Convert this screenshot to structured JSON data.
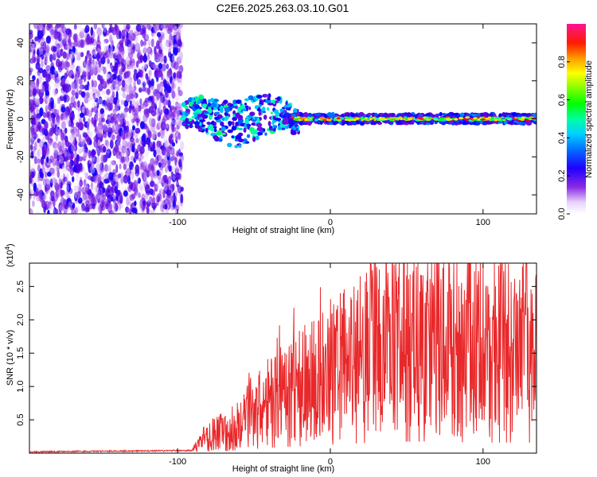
{
  "figure": {
    "title": "C2E6.2025.263.03.10.G01"
  },
  "chart_data": [
    {
      "type": "heatmap",
      "name": "spectrogram",
      "xlabel": "Height of straight line (km)",
      "ylabel": "Frequency (Hz)",
      "xlim": [
        -197,
        135
      ],
      "ylim": [
        -50,
        50
      ],
      "xticks": [
        -100,
        0,
        100
      ],
      "xtick_labels": [
        "-100",
        "0",
        "100"
      ],
      "yticks": [
        -40,
        -20,
        0,
        20,
        40
      ],
      "ytick_labels": [
        "-40",
        "-20",
        "0",
        "20",
        "40"
      ],
      "colorbar": {
        "label": "Normalized spectral amplitude",
        "range": [
          0,
          1
        ],
        "ticks": [
          0.0,
          0.2,
          0.4,
          0.6,
          0.8
        ],
        "tick_labels": [
          "0.0",
          "0.2",
          "0.4",
          "0.6",
          "0.8"
        ],
        "colormap": [
          "#ffffff",
          "#f0e2ff",
          "#8a2be2",
          "#5a00e0",
          "#0000ff",
          "#00b4ff",
          "#00ffcc",
          "#00ff00",
          "#aaff00",
          "#ffff00",
          "#ff9900",
          "#ff0000",
          "#ff1493"
        ]
      },
      "regions": [
        {
          "desc": "broadband noise",
          "x_range": [
            -197,
            -97
          ],
          "y_range": [
            -50,
            50
          ],
          "level": 0.22
        },
        {
          "desc": "narrow band at 0 Hz",
          "x_range": [
            -97,
            135
          ],
          "center_freq": 0,
          "level": 0.95
        }
      ]
    },
    {
      "type": "line",
      "name": "snr",
      "xlabel": "Height of straight line (km)",
      "ylabel": "SNR (10 * v/v)",
      "y_multiplier_label": "(x10",
      "y_multiplier_exp": "4",
      "y_multiplier_close": ")",
      "xlim": [
        -197,
        135
      ],
      "ylim": [
        0,
        2.85
      ],
      "xticks": [
        -100,
        0,
        100
      ],
      "xtick_labels": [
        "-100",
        "0",
        "100"
      ],
      "yticks": [
        0.5,
        1.0,
        1.5,
        2.0,
        2.5
      ],
      "ytick_labels": [
        "0.5",
        "1.0",
        "1.5",
        "2.0",
        "2.5"
      ],
      "color": "#e8282a",
      "envelope": [
        {
          "x": -197,
          "y": 0.02
        },
        {
          "x": -90,
          "y": 0.04
        },
        {
          "x": -80,
          "y": 0.25
        },
        {
          "x": -60,
          "y": 0.45
        },
        {
          "x": -40,
          "y": 0.8
        },
        {
          "x": -20,
          "y": 1.05
        },
        {
          "x": 0,
          "y": 1.25
        },
        {
          "x": 20,
          "y": 1.5
        },
        {
          "x": 40,
          "y": 1.7
        },
        {
          "x": 60,
          "y": 1.75
        },
        {
          "x": 80,
          "y": 1.65
        },
        {
          "x": 100,
          "y": 1.6
        },
        {
          "x": 120,
          "y": 1.6
        },
        {
          "x": 135,
          "y": 1.55
        }
      ]
    }
  ]
}
